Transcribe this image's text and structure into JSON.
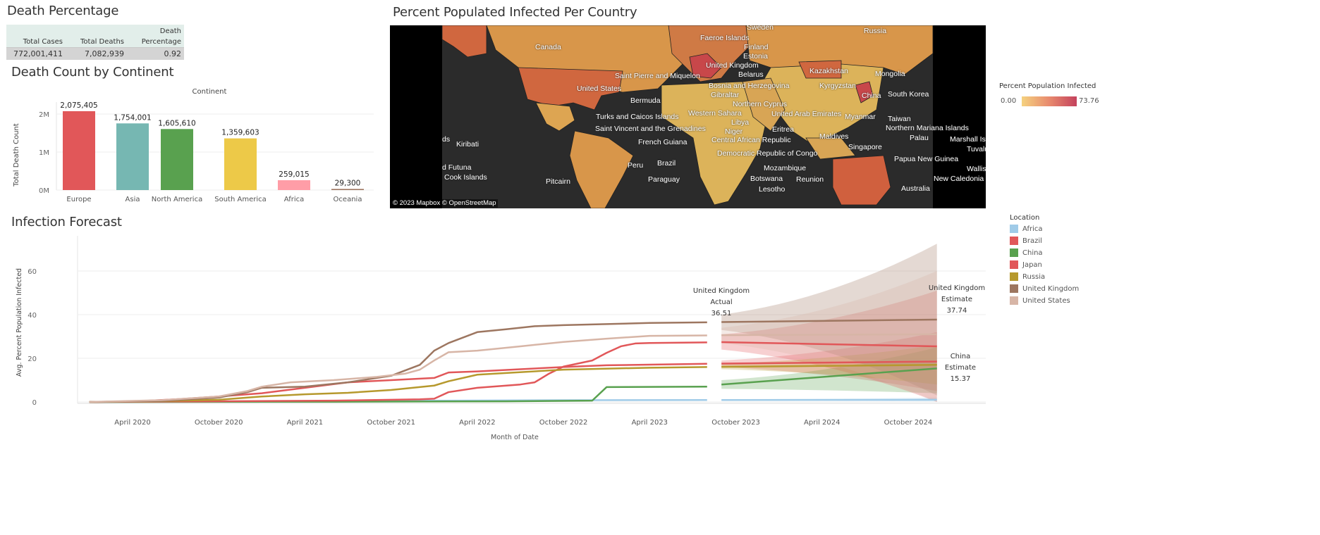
{
  "death_percentage": {
    "title": "Death Percentage",
    "headers": [
      "Total Cases",
      "Total Deaths",
      "Death",
      "Percentage"
    ],
    "values": [
      "772,001,411",
      "7,082,939",
      "0.92"
    ]
  },
  "death_by_continent": {
    "title": "Death Count by Continent",
    "chart_data": {
      "type": "bar",
      "column_header": "Continent",
      "ylabel": "Total Death Count",
      "yticks": [
        "0M",
        "1M",
        "2M"
      ],
      "ylim": [
        0,
        2400000
      ],
      "categories": [
        "Europe",
        "Asia",
        "North America",
        "South America",
        "Africa",
        "Oceania"
      ],
      "values": [
        2075405,
        1754001,
        1605610,
        1359603,
        259015,
        29300
      ],
      "labels": [
        "2,075,405",
        "1,754,001",
        "1,605,610",
        "1,359,603",
        "259,015",
        "29,300"
      ],
      "colors": [
        "#e15759",
        "#76b7b2",
        "#59a14f",
        "#edc948",
        "#ff9da7",
        "#9c755f"
      ]
    }
  },
  "map": {
    "title": "Percent Populated Infected Per Country",
    "attribution": "© 2023 Mapbox  © OpenStreetMap",
    "legend_title": "Percent Population Infected",
    "legend_min": "0.00",
    "legend_max": "73.76",
    "color_low": "#f5d27f",
    "color_high": "#c4425d",
    "labels": [
      "Canada",
      "United States",
      "Saint Pierre and Miquelon",
      "Bermuda",
      "Turks and Caicos Islands",
      "Saint Vincent and the Grenadines",
      "French Guiana",
      "Brazil",
      "Peru",
      "Paraguay",
      "Kiribati",
      "d Futuna",
      "Cook Islands",
      "Pitcairn",
      "ds",
      "Sweden",
      "Faeroe Islands",
      "Finland",
      "Estonia",
      "United Kingdom",
      "Belarus",
      "Bosnia and Herzegovina",
      "Gibraltar",
      "Northern Cyprus",
      "Western Sahara",
      "Libya",
      "United Arab Emirates",
      "Niger",
      "Eritrea",
      "Central African Republic",
      "Democratic Republic of Congo",
      "Mozambique",
      "Botswana",
      "Lesotho",
      "Reunion",
      "Russia",
      "Kazakhstan",
      "Mongolia",
      "Kyrgyzstan",
      "China",
      "South Korea",
      "Myanmar",
      "Taiwan",
      "Maldives",
      "Singapore",
      "Northern Mariana Islands",
      "Palau",
      "Marshall Islan",
      "Papua New Guinea",
      "Tuvalu",
      "Wallis an",
      "New Caledonia",
      "Australia"
    ]
  },
  "forecast": {
    "title": "Infection Forecast",
    "chart_data": {
      "type": "line",
      "xlabel": "Month of Date",
      "ylabel": "Avg. Percent Population Infected",
      "ylim": [
        0,
        75
      ],
      "yticks": [
        0,
        20,
        40,
        60
      ],
      "xticks": [
        "April 2020",
        "October 2020",
        "April 2021",
        "October 2021",
        "April 2022",
        "October 2022",
        "April 2023",
        "October 2023",
        "April 2024",
        "October 2024"
      ],
      "xtick_dates": [
        "2020-04",
        "2020-10",
        "2021-04",
        "2021-10",
        "2022-04",
        "2022-10",
        "2023-04",
        "2023-10",
        "2024-04",
        "2024-10"
      ],
      "legend_title": "Location",
      "legend_placement": "right",
      "forecast_start": "2023-09",
      "forecast_end": "2024-12",
      "series": [
        {
          "name": "Africa",
          "color": "#a0cbe8",
          "actual": [
            [
              "2020-01",
              0
            ],
            [
              "2020-10",
              0.2
            ],
            [
              "2021-06",
              0.4
            ],
            [
              "2022-01",
              0.6
            ],
            [
              "2022-10",
              0.8
            ],
            [
              "2023-08",
              0.9
            ]
          ],
          "forecast": [
            [
              "2023-09",
              0.9
            ],
            [
              "2024-12",
              1.0
            ]
          ],
          "band_start": [
            0.6,
            1.2
          ],
          "band_end": [
            0.2,
            2
          ]
        },
        {
          "name": "Brazil",
          "color": "#e15759",
          "actual": [
            [
              "2020-01",
              0
            ],
            [
              "2020-04",
              0.2
            ],
            [
              "2020-07",
              1.2
            ],
            [
              "2020-10",
              2.5
            ],
            [
              "2021-01",
              4
            ],
            [
              "2021-04",
              6.5
            ],
            [
              "2021-07",
              9
            ],
            [
              "2021-10",
              10
            ],
            [
              "2022-01",
              11
            ],
            [
              "2022-02",
              13.5
            ],
            [
              "2022-04",
              14
            ],
            [
              "2022-07",
              15
            ],
            [
              "2022-10",
              16
            ],
            [
              "2023-01",
              16.8
            ],
            [
              "2023-04",
              17.1
            ],
            [
              "2023-08",
              17.5
            ]
          ],
          "forecast": [
            [
              "2023-09",
              17.6
            ],
            [
              "2024-12",
              18.5
            ]
          ],
          "band_start": [
            16,
            19
          ],
          "band_end": [
            5,
            32
          ]
        },
        {
          "name": "China",
          "color": "#59a14f",
          "actual": [
            [
              "2020-01",
              0
            ],
            [
              "2021-06",
              0.1
            ],
            [
              "2022-06",
              0.3
            ],
            [
              "2022-12",
              0.6
            ],
            [
              "2023-01",
              6.8
            ],
            [
              "2023-08",
              7
            ]
          ],
          "forecast": [
            [
              "2023-09",
              8
            ],
            [
              "2024-12",
              15.37
            ]
          ],
          "band_start": [
            6,
            10
          ],
          "band_end": [
            4,
            25
          ]
        },
        {
          "name": "Japan",
          "color": "#e15759",
          "actual": [
            [
              "2020-01",
              0
            ],
            [
              "2021-06",
              0.6
            ],
            [
              "2021-12",
              1.2
            ],
            [
              "2022-01",
              1.5
            ],
            [
              "2022-02",
              4.5
            ],
            [
              "2022-04",
              6.5
            ],
            [
              "2022-07",
              8
            ],
            [
              "2022-08",
              9
            ],
            [
              "2022-09",
              13
            ],
            [
              "2022-10",
              16.2
            ],
            [
              "2022-12",
              19
            ],
            [
              "2023-01",
              22.5
            ],
            [
              "2023-02",
              25.5
            ],
            [
              "2023-03",
              26.8
            ],
            [
              "2023-04",
              27
            ],
            [
              "2023-08",
              27.3
            ]
          ],
          "forecast": [
            [
              "2023-09",
              27.4
            ],
            [
              "2024-12",
              25.5
            ]
          ],
          "band_start": [
            24,
            31
          ],
          "band_end": [
            0,
            51
          ]
        },
        {
          "name": "Russia",
          "color": "#b6992d",
          "actual": [
            [
              "2020-01",
              0
            ],
            [
              "2020-06",
              0.4
            ],
            [
              "2020-10",
              1
            ],
            [
              "2021-01",
              2.5
            ],
            [
              "2021-04",
              3.5
            ],
            [
              "2021-07",
              4.2
            ],
            [
              "2021-10",
              5.5
            ],
            [
              "2022-01",
              7.5
            ],
            [
              "2022-02",
              9.5
            ],
            [
              "2022-04",
              12.5
            ],
            [
              "2022-10",
              14.8
            ],
            [
              "2023-04",
              15.7
            ],
            [
              "2023-08",
              16
            ]
          ],
          "forecast": [
            [
              "2023-09",
              16.1
            ],
            [
              "2024-12",
              17
            ]
          ],
          "band_start": [
            15,
            17.5
          ],
          "band_end": [
            8,
            26
          ]
        },
        {
          "name": "United Kingdom",
          "color": "#9d7660",
          "actual": [
            [
              "2020-01",
              0
            ],
            [
              "2020-06",
              0.5
            ],
            [
              "2020-10",
              2
            ],
            [
              "2020-12",
              4.5
            ],
            [
              "2021-01",
              6.5
            ],
            [
              "2021-04",
              7
            ],
            [
              "2021-07",
              9
            ],
            [
              "2021-10",
              12
            ],
            [
              "2021-12",
              17
            ],
            [
              "2022-01",
              23.5
            ],
            [
              "2022-02",
              27
            ],
            [
              "2022-04",
              32
            ],
            [
              "2022-06",
              33.3
            ],
            [
              "2022-08",
              34.7
            ],
            [
              "2022-10",
              35.2
            ],
            [
              "2023-01",
              35.7
            ],
            [
              "2023-04",
              36.2
            ],
            [
              "2023-08",
              36.51
            ]
          ],
          "forecast": [
            [
              "2023-09",
              36.6
            ],
            [
              "2024-12",
              37.74
            ]
          ],
          "band_start": [
            33,
            40
          ],
          "band_end": [
            3,
            72.5
          ]
        },
        {
          "name": "United States",
          "color": "#d7b5a6",
          "actual": [
            [
              "2020-01",
              0
            ],
            [
              "2020-06",
              0.8
            ],
            [
              "2020-10",
              2.5
            ],
            [
              "2020-12",
              5
            ],
            [
              "2021-01",
              7
            ],
            [
              "2021-03",
              9
            ],
            [
              "2021-06",
              10
            ],
            [
              "2021-09",
              11.5
            ],
            [
              "2021-11",
              13
            ],
            [
              "2021-12",
              14.8
            ],
            [
              "2022-01",
              19
            ],
            [
              "2022-02",
              22.8
            ],
            [
              "2022-04",
              23.5
            ],
            [
              "2022-07",
              25.5
            ],
            [
              "2022-10",
              27.5
            ],
            [
              "2023-01",
              29
            ],
            [
              "2023-04",
              30.3
            ],
            [
              "2023-08",
              30.5
            ]
          ],
          "forecast": [
            [
              "2023-09",
              30.6
            ],
            [
              "2024-12",
              31
            ]
          ],
          "band_start": [
            27,
            34
          ],
          "band_end": [
            0,
            60
          ]
        }
      ],
      "annotations": [
        {
          "lines": [
            "United Kingdom",
            "Actual",
            "36.51"
          ]
        },
        {
          "lines": [
            "United Kingdom",
            "Estimate",
            "37.74"
          ]
        },
        {
          "lines": [
            "China",
            "Estimate",
            "15.37"
          ]
        }
      ]
    }
  }
}
